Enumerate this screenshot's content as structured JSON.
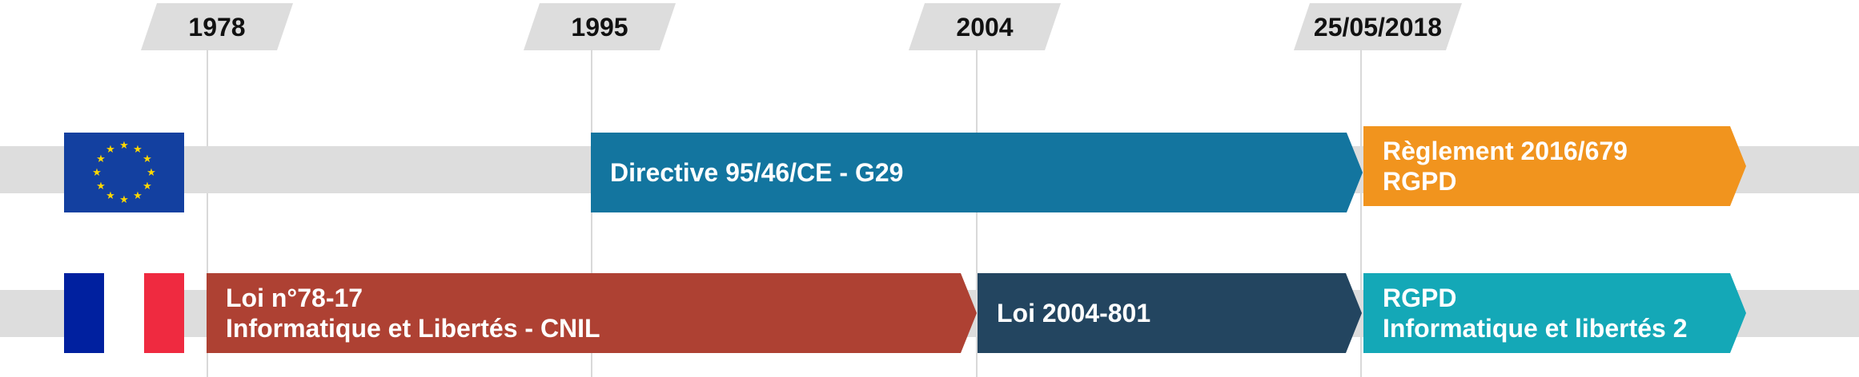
{
  "years": [
    "1978",
    "1995",
    "2004",
    "25/05/2018"
  ],
  "eu_row": {
    "flag": "eu-flag",
    "bars": [
      {
        "lines": [
          "Directive 95/46/CE - G29"
        ],
        "color": "#13759f"
      },
      {
        "lines": [
          "Règlement 2016/679",
          "RGPD"
        ],
        "color": "#f1941e"
      }
    ]
  },
  "fr_row": {
    "flag": "france-flag",
    "bars": [
      {
        "lines": [
          "Loi n°78-17",
          "Informatique et Libertés - CNIL"
        ],
        "color": "#ae4133"
      },
      {
        "lines": [
          "Loi 2004-801"
        ],
        "color": "#234560"
      },
      {
        "lines": [
          "RGPD",
          "Informatique et libertés 2"
        ],
        "color": "#14a8b7"
      }
    ]
  },
  "colors": {
    "lane": "#dddddd",
    "eu_blue": "#1340a0",
    "eu_star": "#ffd700",
    "fr_blue": "#00209f",
    "fr_red": "#ef2a40"
  }
}
